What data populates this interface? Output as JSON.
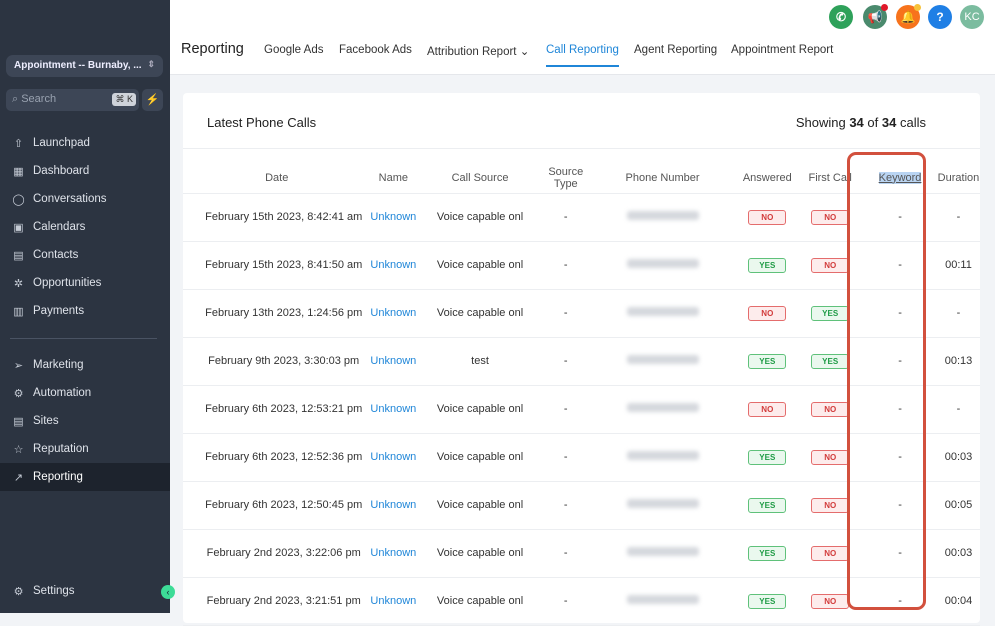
{
  "sidebar": {
    "location": "Appointment -- Burnaby, ...",
    "search_placeholder": "Search",
    "shortcut": "⌘ K",
    "items": [
      {
        "label": "Launchpad",
        "icon": "launchpad-icon"
      },
      {
        "label": "Dashboard",
        "icon": "dashboard-icon"
      },
      {
        "label": "Conversations",
        "icon": "chat-icon"
      },
      {
        "label": "Calendars",
        "icon": "calendar-icon"
      },
      {
        "label": "Contacts",
        "icon": "contacts-icon"
      },
      {
        "label": "Opportunities",
        "icon": "opportunities-icon"
      },
      {
        "label": "Payments",
        "icon": "payments-icon"
      },
      {
        "label": "Marketing",
        "icon": "send-icon"
      },
      {
        "label": "Automation",
        "icon": "automation-icon"
      },
      {
        "label": "Sites",
        "icon": "sites-icon"
      },
      {
        "label": "Reputation",
        "icon": "star-icon"
      },
      {
        "label": "Reporting",
        "icon": "chart-icon",
        "active": true
      }
    ],
    "settings": "Settings"
  },
  "header": {
    "title": "Reporting",
    "avatar": "KC",
    "tabs": [
      "Google Ads",
      "Facebook Ads",
      "Attribution Report",
      "Call Reporting",
      "Agent Reporting",
      "Appointment Report"
    ],
    "active_tab": "Call Reporting",
    "icon_colors": {
      "phone": "#2ea15a",
      "megaphone": "#4a8a6d",
      "bell": "#f7731c",
      "help": "#1f7fe5",
      "avatar": "#7bbc9f"
    }
  },
  "card": {
    "title": "Latest Phone Calls",
    "showing_prefix": "Showing",
    "shown": "34",
    "of": "of",
    "total": "34",
    "suffix": "calls"
  },
  "table": {
    "columns": [
      "Date",
      "Name",
      "Call Source",
      "Source Type",
      "Phone Number",
      "Answered",
      "First Call",
      "Keyword",
      "Duration"
    ],
    "rows": [
      {
        "date": "February 15th 2023, 8:42:41 am",
        "name": "Unknown",
        "source": "Voice capable onl",
        "type": "-",
        "answered": "NO",
        "first": "NO",
        "keyword": "-",
        "duration": "-"
      },
      {
        "date": "February 15th 2023, 8:41:50 am",
        "name": "Unknown",
        "source": "Voice capable onl",
        "type": "-",
        "answered": "YES",
        "first": "NO",
        "keyword": "-",
        "duration": "00:11"
      },
      {
        "date": "February 13th 2023, 1:24:56 pm",
        "name": "Unknown",
        "source": "Voice capable onl",
        "type": "-",
        "answered": "NO",
        "first": "YES",
        "keyword": "-",
        "duration": "-"
      },
      {
        "date": "February 9th 2023, 3:30:03 pm",
        "name": "Unknown",
        "source": "test",
        "type": "-",
        "answered": "YES",
        "first": "YES",
        "keyword": "-",
        "duration": "00:13"
      },
      {
        "date": "February 6th 2023, 12:53:21 pm",
        "name": "Unknown",
        "source": "Voice capable onl",
        "type": "-",
        "answered": "NO",
        "first": "NO",
        "keyword": "-",
        "duration": "-"
      },
      {
        "date": "February 6th 2023, 12:52:36 pm",
        "name": "Unknown",
        "source": "Voice capable onl",
        "type": "-",
        "answered": "YES",
        "first": "NO",
        "keyword": "-",
        "duration": "00:03"
      },
      {
        "date": "February 6th 2023, 12:50:45 pm",
        "name": "Unknown",
        "source": "Voice capable onl",
        "type": "-",
        "answered": "YES",
        "first": "NO",
        "keyword": "-",
        "duration": "00:05"
      },
      {
        "date": "February 2nd 2023, 3:22:06 pm",
        "name": "Unknown",
        "source": "Voice capable onl",
        "type": "-",
        "answered": "YES",
        "first": "NO",
        "keyword": "-",
        "duration": "00:03"
      },
      {
        "date": "February 2nd 2023, 3:21:51 pm",
        "name": "Unknown",
        "source": "Voice capable onl",
        "type": "-",
        "answered": "YES",
        "first": "NO",
        "keyword": "-",
        "duration": "00:04"
      }
    ]
  }
}
